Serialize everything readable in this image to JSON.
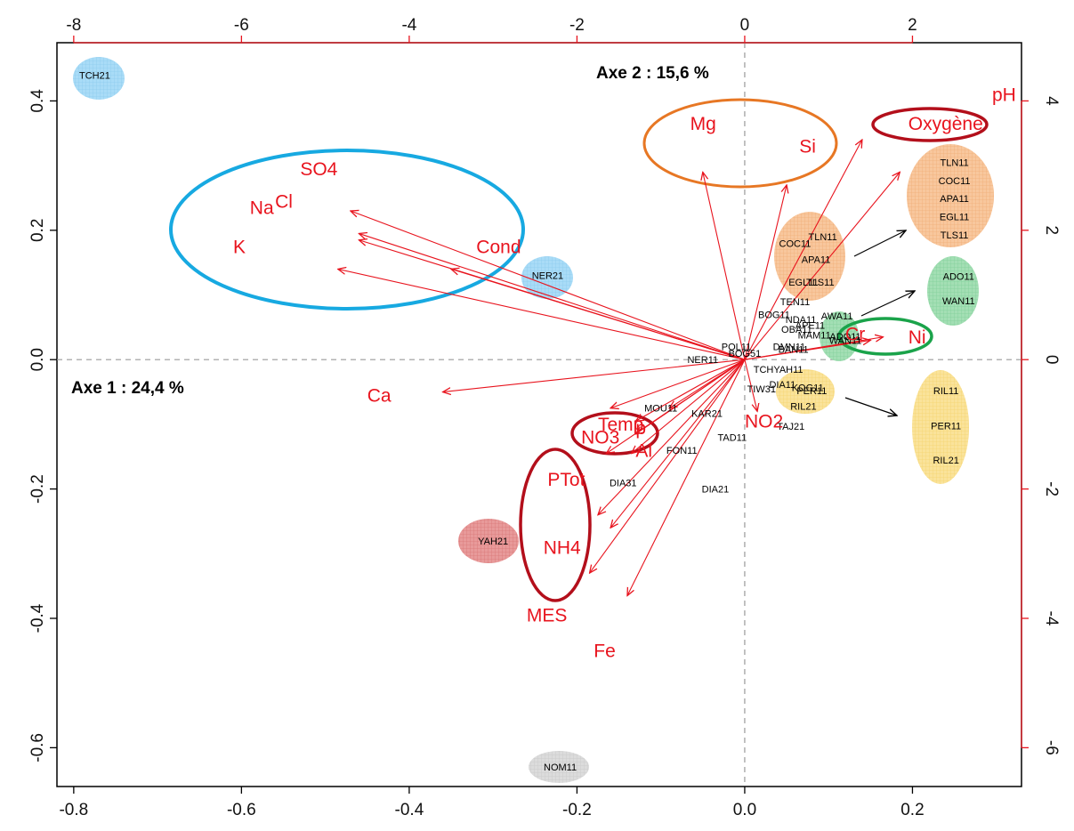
{
  "chart_data": {
    "type": "scatter",
    "title": "",
    "axis1_label": "Axe 1 : 24,4 %",
    "axis2_label": "Axe 2 : 15,6 %",
    "bottom_axis": {
      "range": [
        -0.82,
        0.33
      ],
      "ticks": [
        "-0.8",
        "-0.6",
        "-0.4",
        "-0.2",
        "0.0",
        "0.2"
      ],
      "tick_values": [
        -0.8,
        -0.6,
        -0.4,
        -0.2,
        0.0,
        0.2
      ]
    },
    "left_axis": {
      "range": [
        -0.66,
        0.49
      ],
      "ticks": [
        "-0.6",
        "-0.4",
        "-0.2",
        "0.0",
        "0.2",
        "0.4"
      ],
      "tick_values": [
        -0.6,
        -0.4,
        -0.2,
        0.0,
        0.2,
        0.4
      ]
    },
    "top_axis": {
      "range": [
        -8.2,
        3.3
      ],
      "ticks": [
        "-8",
        "-6",
        "-4",
        "-2",
        "0",
        "2"
      ],
      "tick_values": [
        -8,
        -6,
        -4,
        -2,
        0,
        2
      ]
    },
    "right_axis": {
      "range": [
        -6.6,
        4.9
      ],
      "ticks": [
        "-6",
        "-4",
        "-2",
        "0",
        "2",
        "4"
      ],
      "tick_values": [
        -6,
        -4,
        -2,
        0,
        2,
        4
      ]
    },
    "variables": [
      {
        "name": "SO4",
        "arrow": [
          -4.7,
          2.3
        ],
        "label": [
          -5.3,
          2.85
        ]
      },
      {
        "name": "Na",
        "arrow": [
          -4.6,
          1.95
        ],
        "label": [
          -5.9,
          2.25
        ]
      },
      {
        "name": "Cl",
        "arrow": [
          -4.6,
          1.85
        ],
        "label": [
          -5.6,
          2.35
        ]
      },
      {
        "name": "K",
        "arrow": [
          -4.85,
          1.4
        ],
        "label": [
          -6.1,
          1.65
        ]
      },
      {
        "name": "Cond",
        "arrow": [
          -3.5,
          1.4
        ],
        "label": [
          -3.2,
          1.65
        ]
      },
      {
        "name": "Ca",
        "arrow": [
          -3.6,
          -0.5
        ],
        "label": [
          -4.5,
          -0.65
        ]
      },
      {
        "name": "Mg",
        "arrow": [
          -0.5,
          2.9
        ],
        "label": [
          -0.65,
          3.55
        ]
      },
      {
        "name": "Si",
        "arrow": [
          0.5,
          2.7
        ],
        "label": [
          0.65,
          3.2
        ]
      },
      {
        "name": "pH",
        "arrow": [
          1.4,
          3.4
        ],
        "label": [
          2.95,
          4.0
        ]
      },
      {
        "name": "Oxygène",
        "arrow": [
          1.85,
          2.9
        ],
        "label": [
          1.95,
          3.55
        ]
      },
      {
        "name": "Cr",
        "arrow": [
          1.5,
          0.3
        ],
        "label": [
          1.2,
          0.3
        ]
      },
      {
        "name": "Ni",
        "arrow": [
          1.65,
          0.35
        ],
        "label": [
          1.95,
          0.25
        ]
      },
      {
        "name": "NO2",
        "arrow": [
          0.15,
          -0.8
        ],
        "label": [
          0.0,
          -1.05
        ]
      },
      {
        "name": "Temp",
        "arrow": [
          -1.3,
          -0.95
        ],
        "label": [
          -1.75,
          -1.1
        ]
      },
      {
        "name": "p",
        "arrow": [
          -1.3,
          -1.15
        ],
        "label": [
          -1.3,
          -1.15
        ]
      },
      {
        "name": "NO3",
        "arrow": [
          -1.65,
          -1.45
        ],
        "label": [
          -1.95,
          -1.3
        ]
      },
      {
        "name": "Al",
        "arrow": [
          -1.35,
          -1.45
        ],
        "label": [
          -1.3,
          -1.5
        ]
      },
      {
        "name": "PTot",
        "arrow": [
          -1.75,
          -2.4
        ],
        "label": [
          -2.35,
          -1.95
        ]
      },
      {
        "name": "NH4",
        "arrow": [
          -1.85,
          -3.3
        ],
        "label": [
          -2.4,
          -3.0
        ]
      },
      {
        "name": "MES",
        "arrow": [
          -1.4,
          -3.65
        ],
        "label": [
          -2.6,
          -4.05
        ]
      },
      {
        "name": "Fe",
        "arrow": [
          -1.6,
          -2.6
        ],
        "label": [
          -1.8,
          -4.6
        ]
      },
      {
        "name": "Z1",
        "arrow": [
          -1.6,
          -0.75
        ],
        "label": null
      },
      {
        "name": "Z2",
        "arrow": [
          -0.9,
          -0.75
        ],
        "label": null
      }
    ],
    "sites": [
      {
        "name": "TCH21",
        "x": -0.775,
        "y": 0.44
      },
      {
        "name": "NER21",
        "x": -0.235,
        "y": 0.13
      },
      {
        "name": "NER11",
        "x": -0.05,
        "y": 0.0
      },
      {
        "name": "POL11",
        "x": -0.01,
        "y": 0.02
      },
      {
        "name": "BOG51",
        "x": 0.0,
        "y": 0.01
      },
      {
        "name": "TCHYAH11",
        "x": 0.04,
        "y": -0.015
      },
      {
        "name": "TIW31",
        "x": 0.02,
        "y": -0.045
      },
      {
        "name": "TAD11",
        "x": -0.015,
        "y": -0.12
      },
      {
        "name": "DIA21",
        "x": -0.035,
        "y": -0.2
      },
      {
        "name": "DIA31",
        "x": -0.145,
        "y": -0.19
      },
      {
        "name": "FON11",
        "x": -0.075,
        "y": -0.14
      },
      {
        "name": "MOU11",
        "x": -0.1,
        "y": -0.075
      },
      {
        "name": "KAR21",
        "x": -0.045,
        "y": -0.083
      },
      {
        "name": "YAH21",
        "x": -0.3,
        "y": -0.28
      },
      {
        "name": "NOM11",
        "x": -0.22,
        "y": -0.63
      },
      {
        "name": "COC11",
        "x": 0.06,
        "y": 0.18
      },
      {
        "name": "TLN11",
        "x": 0.093,
        "y": 0.19
      },
      {
        "name": "APA11",
        "x": 0.085,
        "y": 0.155
      },
      {
        "name": "EGL11",
        "x": 0.07,
        "y": 0.12
      },
      {
        "name": "TLS11",
        "x": 0.09,
        "y": 0.12
      },
      {
        "name": "TEN11",
        "x": 0.06,
        "y": 0.09
      },
      {
        "name": "BOG11",
        "x": 0.035,
        "y": 0.07
      },
      {
        "name": "NDA11",
        "x": 0.067,
        "y": 0.062
      },
      {
        "name": "AWA11",
        "x": 0.11,
        "y": 0.068
      },
      {
        "name": "APE11",
        "x": 0.078,
        "y": 0.053
      },
      {
        "name": "OBA11",
        "x": 0.062,
        "y": 0.047
      },
      {
        "name": "MAM11",
        "x": 0.083,
        "y": 0.038
      },
      {
        "name": "ADO11",
        "x": 0.12,
        "y": 0.036
      },
      {
        "name": "WAN11",
        "x": 0.12,
        "y": 0.03
      },
      {
        "name": "DMN11",
        "x": 0.053,
        "y": 0.02
      },
      {
        "name": "BAN11",
        "x": 0.058,
        "y": 0.016
      },
      {
        "name": "DIA11",
        "x": 0.045,
        "y": -0.038
      },
      {
        "name": "KOG11",
        "x": 0.075,
        "y": -0.043
      },
      {
        "name": "PER11",
        "x": 0.08,
        "y": -0.048
      },
      {
        "name": "RIL21",
        "x": 0.07,
        "y": -0.072
      },
      {
        "name": "TAJ21",
        "x": 0.055,
        "y": -0.103
      },
      {
        "name": "TLN11",
        "x": 0.25,
        "y": 0.305
      },
      {
        "name": "COC11",
        "x": 0.25,
        "y": 0.277
      },
      {
        "name": "APA11",
        "x": 0.25,
        "y": 0.249
      },
      {
        "name": "EGL11",
        "x": 0.25,
        "y": 0.221
      },
      {
        "name": "TLS11",
        "x": 0.25,
        "y": 0.193
      },
      {
        "name": "ADO11",
        "x": 0.255,
        "y": 0.129
      },
      {
        "name": "WAN11",
        "x": 0.255,
        "y": 0.091
      },
      {
        "name": "RIL11",
        "x": 0.24,
        "y": -0.048
      },
      {
        "name": "PER11",
        "x": 0.24,
        "y": -0.102
      },
      {
        "name": "RIL21",
        "x": 0.24,
        "y": -0.155
      }
    ]
  }
}
